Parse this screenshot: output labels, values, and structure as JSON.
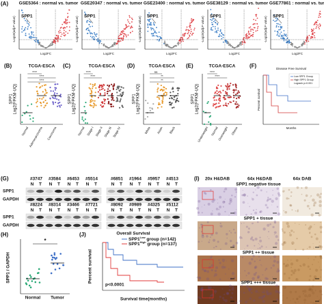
{
  "panel_a": {
    "label": "(A)",
    "y_label": "-Log10(adj.P value)",
    "x_label": "Log2FC",
    "gene": "SPP1",
    "plots": [
      "GSE5364 : normal vs. tumor",
      "GSE20347 : normal vs. tumor",
      "GSE23400 : normal vs. tumor",
      "GSE38129 : normal vs. tumor",
      "GSE77861 : normal vs. tumor"
    ]
  },
  "panel_b": {
    "label": "(B)",
    "title": "TCGA-ESCA",
    "y_label": "SPP1",
    "y_label2": "Log2(FPKM-UQ)",
    "categories": [
      "Normal",
      "Adenocarcinoma",
      "Carcinoma"
    ],
    "significance": [
      "****",
      "****",
      "****"
    ]
  },
  "panel_c": {
    "label": "(C)",
    "title": "TCGA-ESCA",
    "y_label": "SPP1",
    "y_label2": "Log2(FPKM-UQ)",
    "categories": [
      "Normal",
      "Stage I",
      "Stage II",
      "Stage III",
      "Stage IV"
    ],
    "significance": [
      "****",
      "****"
    ]
  },
  "panel_d": {
    "label": "(D)",
    "title": "TCGA-ESCA",
    "y_label": "SPP1",
    "y_label2": "Log2(FPKM-UQ)",
    "categories": [
      "White",
      "Asian",
      "Black"
    ],
    "significance": [
      "ns",
      "**",
      "**"
    ]
  },
  "panel_e": {
    "label": "(E)",
    "title": "TCGA-ESCA",
    "y_label": "SPP1",
    "y_label2": "Log2(FPKM-UQ)",
    "categories": [
      "Underweight",
      "Normal",
      "Overweight",
      "Obese"
    ],
    "significance": [
      "****",
      "****"
    ]
  },
  "panel_f": {
    "label": "(F)",
    "title": "Disease Free Survival",
    "y_label": "Percent survival",
    "x_label": "Months",
    "legend": [
      "Low SPP1 Group",
      "High SPP1 Group",
      "Logrank p=0.001"
    ]
  },
  "panel_g": {
    "label": "(G)",
    "rows": [
      [
        "#3747",
        "#3584",
        "#6453",
        "#5514",
        "#6851",
        "#1964",
        "#5957",
        "#4513"
      ],
      [
        "#8224",
        "#8314",
        "#3466",
        "#7721",
        "#8092",
        "#0989",
        "#4325",
        "#5112"
      ]
    ],
    "normal": "N",
    "tumor": "T",
    "bands": [
      "SPP1",
      "GAPDH"
    ]
  },
  "panel_h": {
    "label": "(H)",
    "y_label": "SPP1 / GAPDH",
    "categories": [
      "Normal",
      "Tumor"
    ],
    "significance": "*"
  },
  "panel_i": {
    "label": "(I)",
    "columns": [
      "20x  H&DAB",
      "64x  H&DAB",
      "64x  DAB"
    ],
    "rows": [
      "SPP1 negative tissue",
      "SPP1 + tissue",
      "SPP1 ++ tissue",
      "SPP1 +++ tissue"
    ]
  },
  "panel_j": {
    "label": "(J)",
    "title": "Overall Survival",
    "y_label": "Percent survival",
    "x_label": "Survival time(months)",
    "p_value": "p<0.0001",
    "legend": [
      {
        "gene": "SPP1",
        "sup": "Low",
        "text": " group (n=142)"
      },
      {
        "gene": "SPP1",
        "sup": "High",
        "text": " group (n=137)"
      }
    ]
  }
}
